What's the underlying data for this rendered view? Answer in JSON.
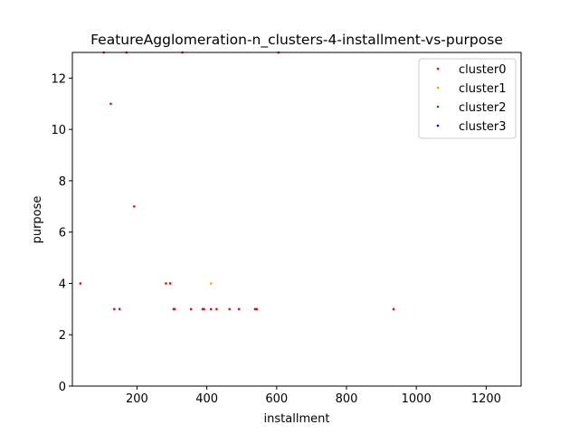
{
  "chart_data": {
    "type": "scatter",
    "title": "FeatureAgglomeration-n_clusters-4-installment-vs-purpose",
    "xlabel": "installment",
    "ylabel": "purpose",
    "xlim": [
      15,
      1300
    ],
    "ylim": [
      0,
      13
    ],
    "xticks": [
      200,
      400,
      600,
      800,
      1000,
      1200
    ],
    "yticks": [
      0,
      2,
      4,
      6,
      8,
      10,
      12
    ],
    "xtick_labels": [
      "200",
      "400",
      "600",
      "800",
      "1000",
      "1200"
    ],
    "ytick_labels": [
      "0",
      "2",
      "4",
      "6",
      "8",
      "10",
      "12"
    ],
    "grid": false,
    "legend_position": "top-right",
    "series": [
      {
        "name": "cluster0",
        "color": "#ff0000",
        "points": [
          [
            38,
            4
          ],
          [
            125,
            11
          ],
          [
            135,
            3
          ],
          [
            150,
            3
          ],
          [
            192,
            7
          ],
          [
            283,
            4
          ],
          [
            295,
            4
          ],
          [
            305,
            3
          ],
          [
            308,
            3
          ],
          [
            355,
            3
          ],
          [
            388,
            3
          ],
          [
            392,
            3
          ],
          [
            412,
            3
          ],
          [
            428,
            3
          ],
          [
            465,
            3
          ],
          [
            492,
            3
          ],
          [
            538,
            3
          ],
          [
            543,
            3
          ],
          [
            935,
            3
          ],
          [
            105,
            13
          ],
          [
            170,
            13
          ],
          [
            330,
            13
          ],
          [
            605,
            13
          ]
        ]
      },
      {
        "name": "cluster1",
        "color": "#ffa500",
        "points": [
          [
            412,
            4
          ]
        ]
      },
      {
        "name": "cluster2",
        "color": "#008000",
        "points": []
      },
      {
        "name": "cluster3",
        "color": "#0000ff",
        "points": []
      }
    ]
  }
}
